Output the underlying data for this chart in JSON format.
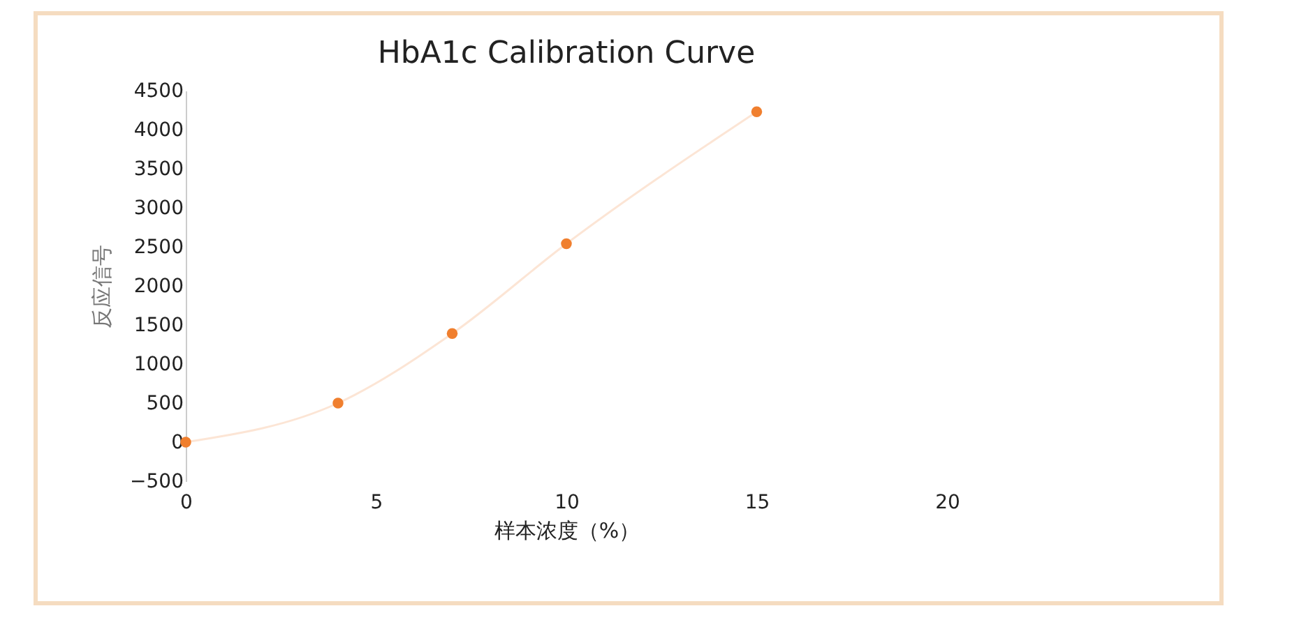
{
  "chart_data": {
    "type": "line",
    "title": "HbA1c Calibration Curve",
    "xlabel": "样本浓度（%）",
    "ylabel": "反应信号",
    "x": [
      0,
      4,
      7,
      10,
      15
    ],
    "series": [
      {
        "color": "#f07f2e",
        "values": [
          0,
          500,
          1390,
          2540,
          4230
        ]
      }
    ],
    "xlim": [
      0,
      20
    ],
    "xticks": [
      0,
      5,
      10,
      15,
      20
    ],
    "ylim": [
      -500,
      4500
    ],
    "yticks": [
      -500,
      0,
      500,
      1000,
      1500,
      2000,
      2500,
      3000,
      3500,
      4000,
      4500
    ],
    "marker": "circle",
    "grid": false
  }
}
